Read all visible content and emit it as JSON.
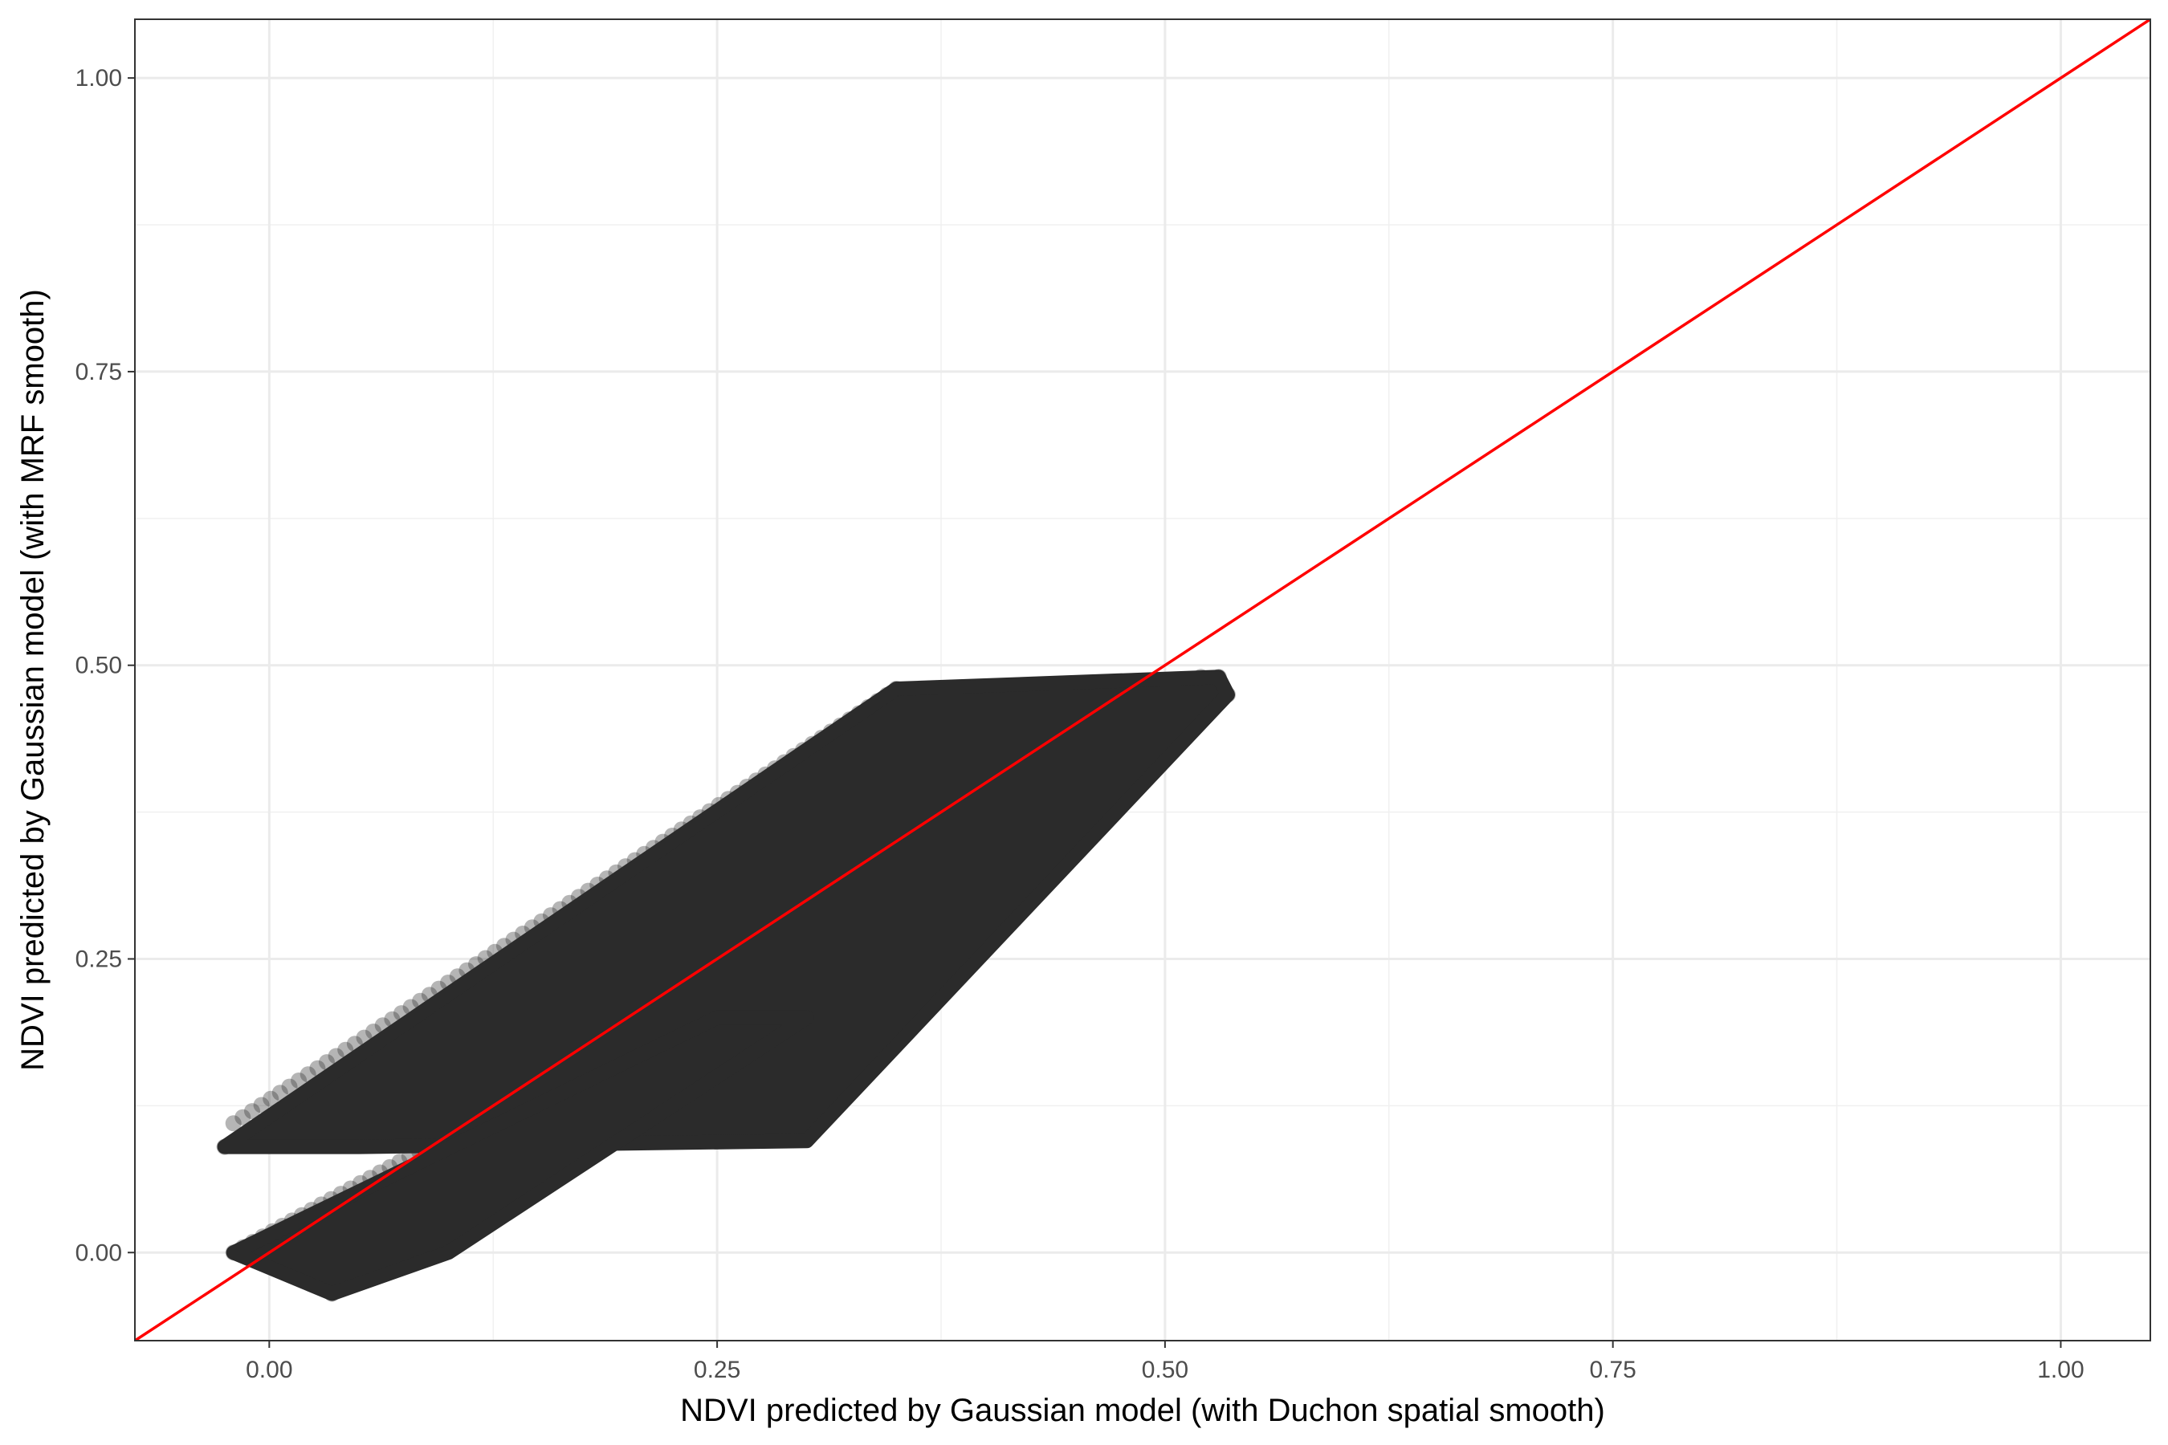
{
  "chart_data": {
    "type": "scatter",
    "title": "",
    "xlabel": "NDVI predicted by Gaussian model (with Duchon spatial smooth)",
    "ylabel": "NDVI predicted by Gaussian model (with MRF smooth)",
    "xlim": [
      -0.075,
      1.05
    ],
    "ylim": [
      -0.075,
      1.05
    ],
    "x_ticks": [
      0.0,
      0.25,
      0.5,
      0.75,
      1.0
    ],
    "y_ticks": [
      0.0,
      0.25,
      0.5,
      0.75,
      1.0
    ],
    "x_tick_labels": [
      "0.00",
      "0.25",
      "0.50",
      "0.75",
      "1.00"
    ],
    "y_tick_labels": [
      "0.00",
      "0.25",
      "0.50",
      "0.75",
      "1.00"
    ],
    "grid": true,
    "legend": "none",
    "point_color": "#2b2b2b",
    "point_opacity": 0.35,
    "reference_line": {
      "type": "identity",
      "slope": 1,
      "intercept": 0,
      "color": "#ff0000"
    },
    "point_bands": [
      {
        "x_start": -0.02,
        "y_start": 0.11,
        "x_end": 0.35,
        "y_end": 0.48
      },
      {
        "x_start": -0.025,
        "y_start": 0.09,
        "x_end": 0.53,
        "y_end": 0.49
      },
      {
        "x_start": 0.02,
        "y_start": 0.095,
        "x_end": 0.535,
        "y_end": 0.475
      },
      {
        "x_start": 0.05,
        "y_start": 0.095,
        "x_end": 0.53,
        "y_end": 0.48
      },
      {
        "x_start": 0.08,
        "y_start": 0.095,
        "x_end": 0.5,
        "y_end": 0.485
      },
      {
        "x_start": 0.12,
        "y_start": 0.095,
        "x_end": 0.52,
        "y_end": 0.49
      },
      {
        "x_start": -0.02,
        "y_start": 0.0,
        "x_end": 0.22,
        "y_end": 0.2
      },
      {
        "x_start": 0.025,
        "y_start": 0.0,
        "x_end": 0.25,
        "y_end": 0.185
      },
      {
        "x_start": 0.035,
        "y_start": -0.035,
        "x_end": 0.3,
        "y_end": 0.2
      },
      {
        "x_start": 0.04,
        "y_start": 0.02,
        "x_end": 0.28,
        "y_end": 0.22
      }
    ]
  }
}
